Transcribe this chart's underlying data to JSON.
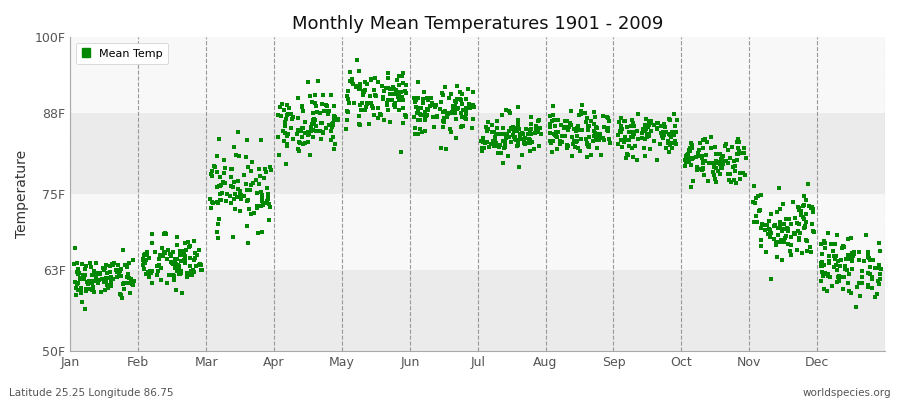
{
  "title": "Monthly Mean Temperatures 1901 - 2009",
  "ylabel": "Temperature",
  "yticks": [
    50,
    63,
    75,
    88,
    100
  ],
  "ytick_labels": [
    "50F",
    "63F",
    "75F",
    "88F",
    "100F"
  ],
  "ylim": [
    50,
    100
  ],
  "months": [
    "Jan",
    "Feb",
    "Mar",
    "Apr",
    "May",
    "Jun",
    "Jul",
    "Aug",
    "Sep",
    "Oct",
    "Nov",
    "Dec"
  ],
  "xlim": [
    0,
    12
  ],
  "dot_color": "#008800",
  "bg_band_light": "#EBEBEB",
  "bg_band_white": "#F8F8F8",
  "legend_label": "Mean Temp",
  "footer_left": "Latitude 25.25 Longitude 86.75",
  "footer_right": "worldspecies.org",
  "n_years": 109,
  "monthly_means": [
    61.5,
    64.0,
    76.0,
    86.5,
    90.5,
    88.0,
    84.5,
    84.5,
    84.5,
    80.5,
    70.0,
    63.5
  ],
  "monthly_stds": [
    1.8,
    2.2,
    3.2,
    2.5,
    2.5,
    2.0,
    1.8,
    1.8,
    1.8,
    2.0,
    3.0,
    2.5
  ]
}
